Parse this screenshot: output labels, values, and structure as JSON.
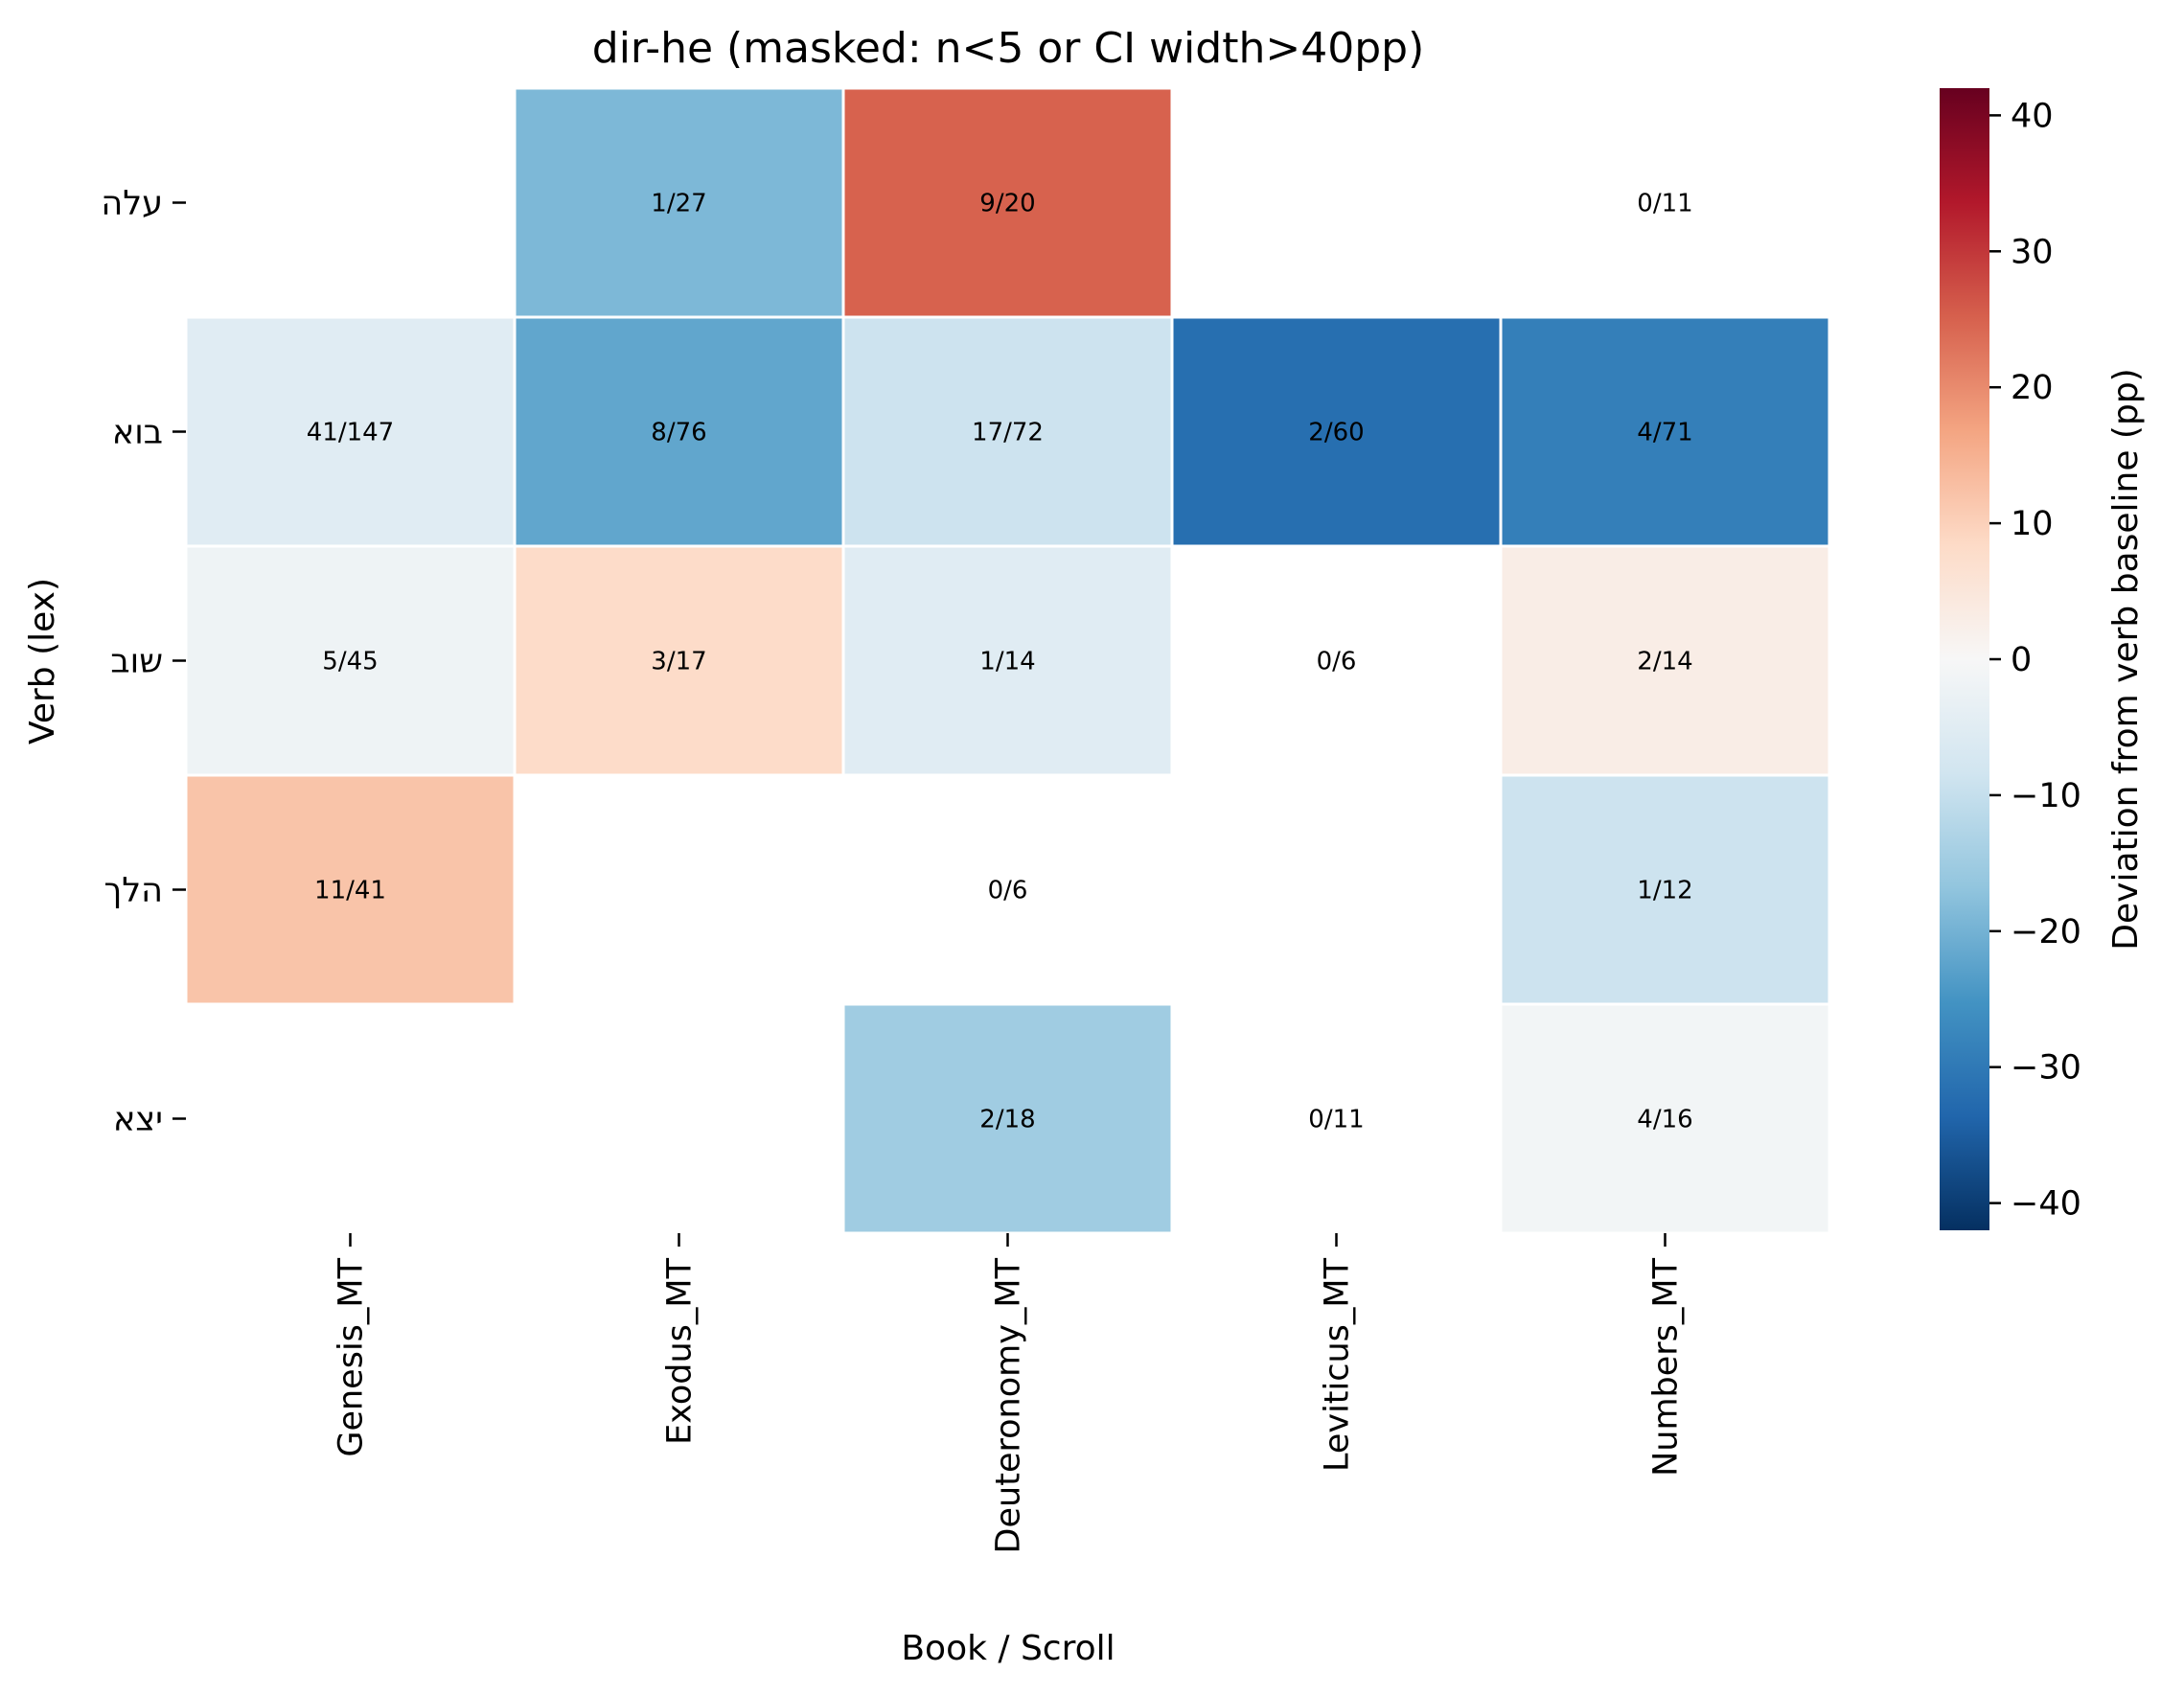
{
  "chart_data": {
    "type": "heatmap",
    "title": "dir-he (masked: n<5 or CI width>40pp)",
    "xlabel": "Book / Scroll",
    "ylabel": "Verb (lex)",
    "columns": [
      "Genesis_MT",
      "Exodus_MT",
      "Deuteronomy_MT",
      "Leviticus_MT",
      "Numbers_MT"
    ],
    "rows": [
      "עלה",
      "בוא",
      "שוב",
      "הלך",
      "יצא"
    ],
    "cells": [
      [
        {
          "label": "",
          "value": null
        },
        {
          "label": "1/27",
          "value": -19
        },
        {
          "label": "9/20",
          "value": 25
        },
        {
          "label": "",
          "value": null
        },
        {
          "label": "0/11",
          "value": null
        }
      ],
      [
        {
          "label": "41/147",
          "value": -5
        },
        {
          "label": "8/76",
          "value": -22
        },
        {
          "label": "17/72",
          "value": -9
        },
        {
          "label": "2/60",
          "value": -32
        },
        {
          "label": "4/71",
          "value": -29
        }
      ],
      [
        {
          "label": "5/45",
          "value": -2
        },
        {
          "label": "3/17",
          "value": 8
        },
        {
          "label": "1/14",
          "value": -5
        },
        {
          "label": "0/6",
          "value": null
        },
        {
          "label": "2/14",
          "value": 3
        }
      ],
      [
        {
          "label": "11/41",
          "value": 12
        },
        {
          "label": "",
          "value": null
        },
        {
          "label": "0/6",
          "value": null
        },
        {
          "label": "",
          "value": null
        },
        {
          "label": "1/12",
          "value": -9
        }
      ],
      [
        {
          "label": "",
          "value": null
        },
        {
          "label": "",
          "value": null
        },
        {
          "label": "2/18",
          "value": -15
        },
        {
          "label": "0/11",
          "value": null
        },
        {
          "label": "4/16",
          "value": -1
        }
      ]
    ],
    "colorbar": {
      "label": "Deviation from verb baseline (pp)",
      "range": [
        -42,
        42
      ],
      "ticks": [
        40,
        30,
        20,
        10,
        0,
        -10,
        -20,
        -30,
        -40
      ],
      "tick_labels": [
        "40",
        "30",
        "20",
        "10",
        "0",
        "−10",
        "−20",
        "−30",
        "−40"
      ],
      "colormap": "RdBu_r",
      "stops": [
        "#053061",
        "#2166ac",
        "#4393c3",
        "#92c5de",
        "#d1e5f0",
        "#f7f7f7",
        "#fddbc7",
        "#f4a582",
        "#d6604d",
        "#b2182b",
        "#67001f"
      ]
    }
  }
}
